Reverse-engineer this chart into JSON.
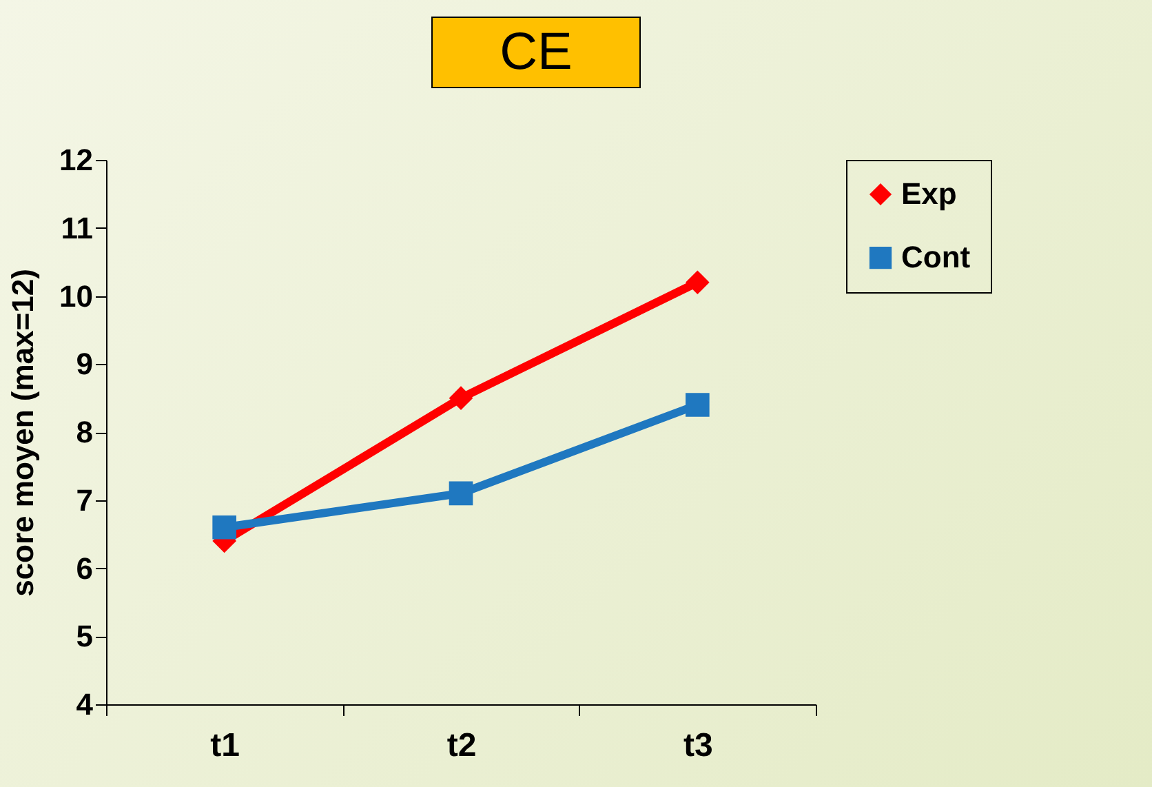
{
  "chart_data": {
    "type": "line",
    "title": "CE",
    "ylabel": "score moyen (max=12)",
    "categories": [
      "t1",
      "t2",
      "t3"
    ],
    "series": [
      {
        "name": "Exp",
        "color": "#ff0000",
        "marker": "diamond",
        "values": [
          6.4,
          8.5,
          10.2
        ]
      },
      {
        "name": "Cont",
        "color": "#1f78c0",
        "marker": "square",
        "values": [
          6.6,
          7.1,
          8.4
        ]
      }
    ],
    "ylim": [
      4,
      12
    ],
    "yticks": [
      4,
      5,
      6,
      7,
      8,
      9,
      10,
      11,
      12
    ],
    "grid": false,
    "legend": "right",
    "line_style": "solid"
  }
}
